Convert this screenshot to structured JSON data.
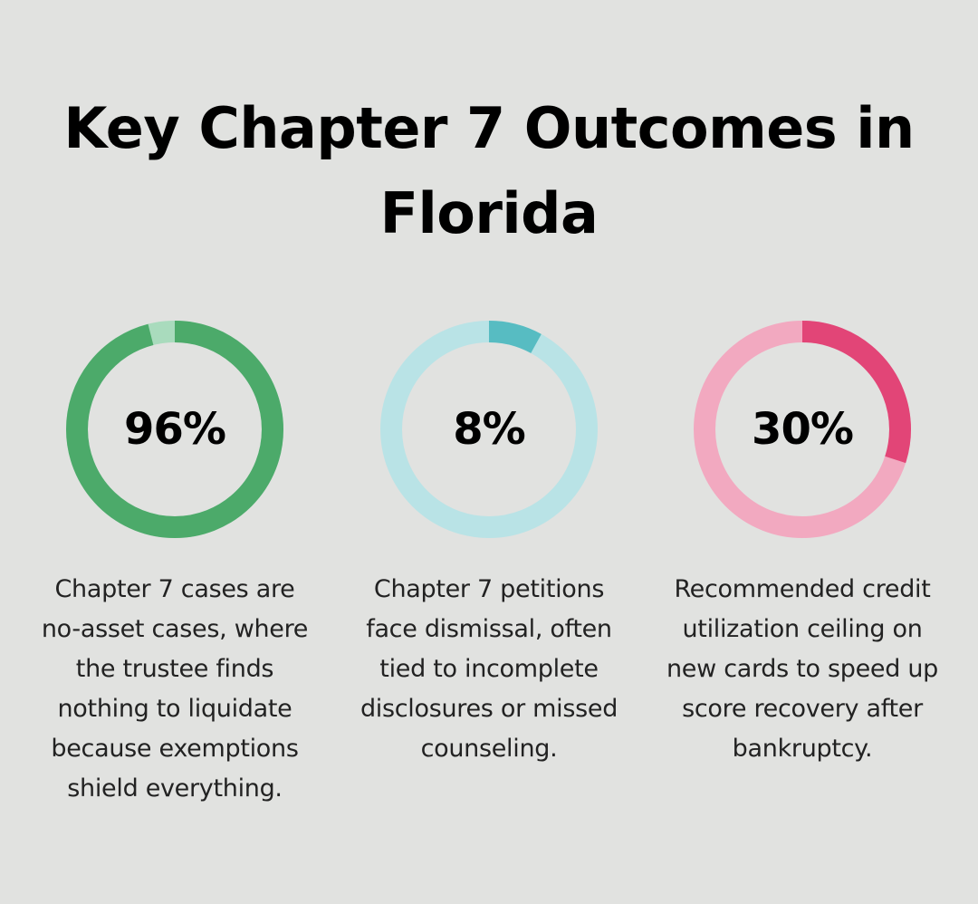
{
  "title": "Key Chapter 7 Outcomes in Florida",
  "chart_data": [
    {
      "type": "pie",
      "value": 96,
      "label": "96%",
      "description": "Chapter 7 cases are no-asset cases, where the trustee finds nothing to liquidate because exemptions shield everything.",
      "colors": {
        "fill": "#4caa6a",
        "track": "#a9dbbd"
      }
    },
    {
      "type": "pie",
      "value": 8,
      "label": "8%",
      "description": "Chapter 7 petitions face dismissal, often tied to incomplete disclosures or missed counseling.",
      "colors": {
        "fill": "#57bcc2",
        "track": "#b9e3e6"
      }
    },
    {
      "type": "pie",
      "value": 30,
      "label": "30%",
      "description": "Recommended credit utilization ceiling on new cards to speed up score recovery after bankruptcy.",
      "colors": {
        "fill": "#e24577",
        "track": "#f2a9c0"
      }
    }
  ]
}
